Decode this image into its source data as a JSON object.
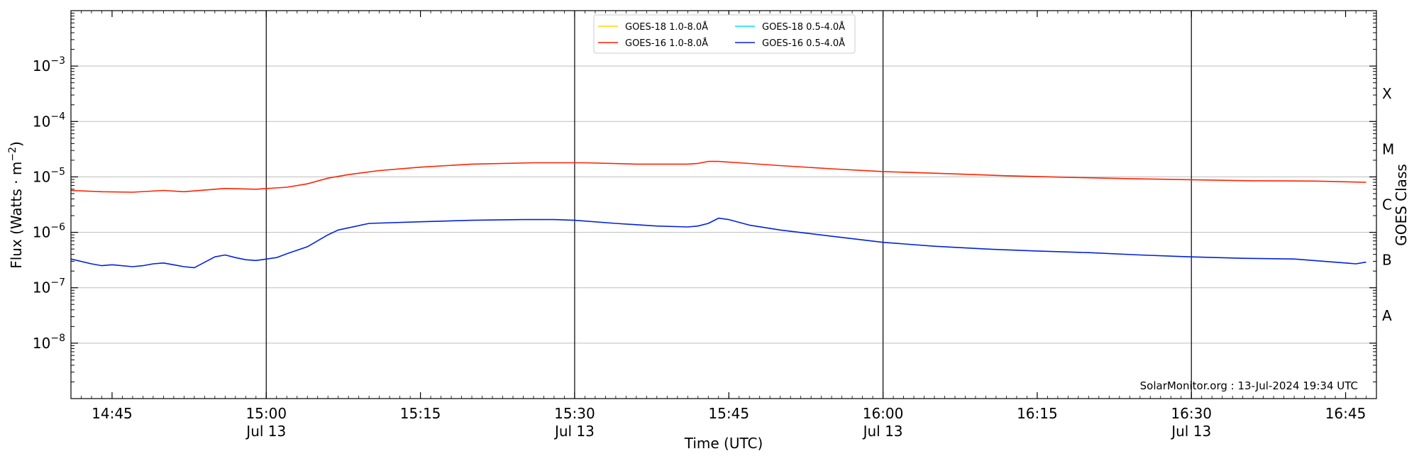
{
  "chart_data": {
    "type": "line",
    "title": "",
    "xlabel": "Time (UTC)",
    "ylabel": "Flux (Watts · m",
    "ylabel_sup": "−2",
    "ylabel_close": ")",
    "right_label": "GOES Class",
    "y_scale": "log",
    "ylim": [
      1e-09,
      0.01
    ],
    "xlim": [
      "14:41",
      "16:48"
    ],
    "x_ticks": [
      {
        "t": "14:45",
        "label": "14:45",
        "sub": ""
      },
      {
        "t": "15:00",
        "label": "15:00",
        "sub": "Jul 13"
      },
      {
        "t": "15:15",
        "label": "15:15",
        "sub": ""
      },
      {
        "t": "15:30",
        "label": "15:30",
        "sub": "Jul 13"
      },
      {
        "t": "15:45",
        "label": "15:45",
        "sub": ""
      },
      {
        "t": "16:00",
        "label": "16:00",
        "sub": "Jul 13"
      },
      {
        "t": "16:15",
        "label": "16:15",
        "sub": ""
      },
      {
        "t": "16:30",
        "label": "16:30",
        "sub": "Jul 13"
      },
      {
        "t": "16:45",
        "label": "16:45",
        "sub": ""
      }
    ],
    "y_ticks": [
      {
        "exp": -8,
        "label": "10",
        "sup": "−8"
      },
      {
        "exp": -7,
        "label": "10",
        "sup": "−7"
      },
      {
        "exp": -6,
        "label": "10",
        "sup": "−6"
      },
      {
        "exp": -5,
        "label": "10",
        "sup": "−5"
      },
      {
        "exp": -4,
        "label": "10",
        "sup": "−4"
      },
      {
        "exp": -3,
        "label": "10",
        "sup": "−3"
      }
    ],
    "goes_classes": [
      {
        "exp": -7.5,
        "label": "A"
      },
      {
        "exp": -6.5,
        "label": "B"
      },
      {
        "exp": -5.5,
        "label": "C"
      },
      {
        "exp": -4.5,
        "label": "M"
      },
      {
        "exp": -3.5,
        "label": "X"
      }
    ],
    "vlines": [
      "15:00",
      "15:30",
      "16:00",
      "16:30"
    ],
    "grid": "horizontal",
    "legend_position": "top-center",
    "legend": [
      {
        "name": "GOES-18 1.0-8.0Å",
        "color": "#ffd700"
      },
      {
        "name": "GOES-18 0.5-4.0Å",
        "color": "#00e5ee"
      },
      {
        "name": "GOES-16 1.0-8.0Å",
        "color": "#ff2200"
      },
      {
        "name": "GOES-16 0.5-4.0Å",
        "color": "#0022dd"
      }
    ],
    "series": [
      {
        "name": "GOES-16 1.0-8.0Å",
        "color": "#ff2200",
        "x": [
          "14:41",
          "14:44",
          "14:47",
          "14:50",
          "14:52",
          "14:56",
          "14:59",
          "15:02",
          "15:04",
          "15:06",
          "15:08",
          "15:11",
          "15:15",
          "15:20",
          "15:26",
          "15:31",
          "15:36",
          "15:41",
          "15:42",
          "15:43",
          "15:44",
          "15:46",
          "15:50",
          "15:55",
          "16:00",
          "16:06",
          "16:12",
          "16:18",
          "16:24",
          "16:30",
          "16:36",
          "16:42",
          "16:47"
        ],
        "y": [
          5.7e-06,
          5.4e-06,
          5.3e-06,
          5.7e-06,
          5.4e-06,
          6.2e-06,
          6e-06,
          6.5e-06,
          7.5e-06,
          9.5e-06,
          1.1e-05,
          1.3e-05,
          1.5e-05,
          1.7e-05,
          1.8e-05,
          1.8e-05,
          1.7e-05,
          1.7e-05,
          1.75e-05,
          1.9e-05,
          1.9e-05,
          1.8e-05,
          1.6e-05,
          1.4e-05,
          1.25e-05,
          1.15e-05,
          1.05e-05,
          9.8e-06,
          9.3e-06,
          8.9e-06,
          8.5e-06,
          8.4e-06,
          8e-06
        ]
      },
      {
        "name": "GOES-16 0.5-4.0Å",
        "color": "#0022dd",
        "x": [
          "14:41",
          "14:43",
          "14:44",
          "14:45",
          "14:47",
          "14:48",
          "14:49",
          "14:50",
          "14:52",
          "14:53",
          "14:55",
          "14:56",
          "14:57",
          "14:58",
          "14:59",
          "15:01",
          "15:02",
          "15:04",
          "15:06",
          "15:07",
          "15:10",
          "15:15",
          "15:20",
          "15:25",
          "15:28",
          "15:30",
          "15:34",
          "15:38",
          "15:41",
          "15:42",
          "15:43",
          "15:44",
          "15:45",
          "15:47",
          "15:50",
          "15:55",
          "16:00",
          "16:05",
          "16:10",
          "16:15",
          "16:20",
          "16:25",
          "16:30",
          "16:35",
          "16:40",
          "16:45",
          "16:46",
          "16:47"
        ],
        "y": [
          3.3e-07,
          2.7e-07,
          2.5e-07,
          2.6e-07,
          2.4e-07,
          2.5e-07,
          2.7e-07,
          2.8e-07,
          2.4e-07,
          2.3e-07,
          3.6e-07,
          3.9e-07,
          3.5e-07,
          3.2e-07,
          3.1e-07,
          3.5e-07,
          4.1e-07,
          5.5e-07,
          9e-07,
          1.1e-06,
          1.45e-06,
          1.55e-06,
          1.65e-06,
          1.7e-06,
          1.7e-06,
          1.65e-06,
          1.45e-06,
          1.3e-06,
          1.25e-06,
          1.3e-06,
          1.45e-06,
          1.8e-06,
          1.7e-06,
          1.35e-06,
          1.1e-06,
          8.5e-07,
          6.6e-07,
          5.6e-07,
          5e-07,
          4.6e-07,
          4.3e-07,
          3.9e-07,
          3.6e-07,
          3.4e-07,
          3.3e-07,
          2.8e-07,
          2.7e-07,
          2.9e-07
        ]
      }
    ],
    "credit": "SolarMonitor.org : 13-Jul-2024 19:34 UTC"
  }
}
